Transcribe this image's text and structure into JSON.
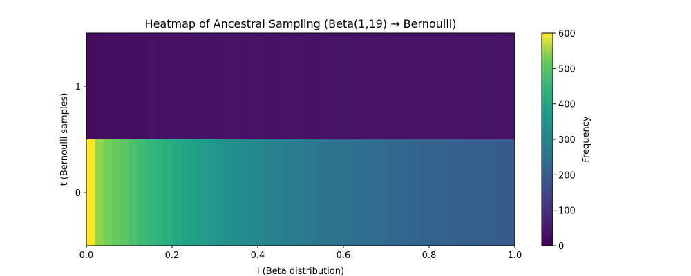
{
  "chart_data": {
    "type": "heatmap",
    "title": "Heatmap of Ancestral Sampling (Beta(1,19) → Bernoulli)",
    "xlabel": "i (Beta distribution)",
    "ylabel": "t (Bernoulli samples)",
    "xlim": [
      0,
      1
    ],
    "x_ticks": [
      "0.0",
      "0.2",
      "0.4",
      "0.6",
      "0.8",
      "1.0"
    ],
    "y_categories": [
      "0",
      "1"
    ],
    "colormap": "viridis",
    "colorbar": {
      "label": "Frequency",
      "range": [
        0,
        600
      ],
      "ticks": [
        "0",
        "100",
        "200",
        "300",
        "400",
        "500",
        "600"
      ]
    },
    "bins": 50,
    "rows": [
      {
        "t": "0",
        "values": [
          600,
          545,
          530,
          515,
          500,
          480,
          465,
          450,
          435,
          420,
          408,
          396,
          384,
          372,
          362,
          352,
          342,
          334,
          326,
          318,
          310,
          302,
          296,
          290,
          284,
          278,
          272,
          266,
          260,
          256,
          252,
          248,
          244,
          240,
          236,
          232,
          228,
          224,
          220,
          216,
          214,
          212,
          210,
          208,
          206,
          204,
          202,
          200,
          198,
          196
        ]
      },
      {
        "t": "1",
        "values": [
          22,
          24,
          26,
          28,
          28,
          30,
          30,
          32,
          32,
          34,
          32,
          34,
          34,
          36,
          34,
          34,
          36,
          36,
          34,
          36,
          36,
          34,
          38,
          36,
          38,
          36,
          34,
          36,
          38,
          36,
          38,
          36,
          36,
          38,
          36,
          36,
          38,
          36,
          36,
          38,
          36,
          36,
          38,
          36,
          36,
          36,
          38,
          36,
          36,
          38
        ]
      }
    ]
  }
}
